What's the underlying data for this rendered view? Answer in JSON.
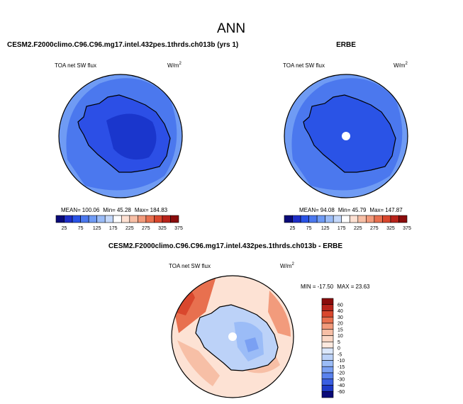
{
  "page_title": "ANN",
  "colors": {
    "ocean_light": "#6f9bf4",
    "ocean_mid": "#4b78ee",
    "land": "#2c4fe6",
    "interior": "#1a36cc",
    "coast": "#000000",
    "pole_dot": "#ffffff"
  },
  "chart_data": [
    {
      "type": "heatmap",
      "title": "CESM2.F2000climo.C96.C96.mg17.intel.432pes.1thrds.ch013b (yrs 1)",
      "variable": "TOA net SW flux",
      "units": "W/m",
      "units_superscript": "2",
      "projection": "south-polar-stereographic",
      "stats": {
        "mean_label": "MEAN=",
        "mean": "100.06",
        "min_label": "Min=",
        "min": "45.28",
        "max_label": "Max=",
        "max": "184.83"
      },
      "colorbar": {
        "orientation": "horizontal",
        "ticks": [
          "25",
          "75",
          "125",
          "175",
          "225",
          "275",
          "325",
          "375"
        ],
        "colors": [
          "#0a0a78",
          "#1f2fc8",
          "#2a53e6",
          "#4b78ee",
          "#6f9bf4",
          "#9bbcf7",
          "#c4d8fa",
          "#ffffff",
          "#fde0d2",
          "#f7bfa6",
          "#f29b7c",
          "#e8704f",
          "#d9472d",
          "#b8231b",
          "#8a0c0c"
        ]
      }
    },
    {
      "type": "heatmap",
      "title": "ERBE",
      "variable": "TOA net SW flux",
      "units": "W/m",
      "units_superscript": "2",
      "projection": "south-polar-stereographic",
      "stats": {
        "mean_label": "MEAN=",
        "mean": "94.08",
        "min_label": "Min=",
        "min": "45.79",
        "max_label": "Max=",
        "max": "147.87"
      },
      "colorbar": {
        "orientation": "horizontal",
        "ticks": [
          "25",
          "75",
          "125",
          "175",
          "225",
          "275",
          "325",
          "375"
        ],
        "colors": [
          "#0a0a78",
          "#1f2fc8",
          "#2a53e6",
          "#4b78ee",
          "#6f9bf4",
          "#9bbcf7",
          "#c4d8fa",
          "#ffffff",
          "#fde0d2",
          "#f7bfa6",
          "#f29b7c",
          "#e8704f",
          "#d9472d",
          "#b8231b",
          "#8a0c0c"
        ]
      }
    },
    {
      "type": "heatmap",
      "title": "CESM2.F2000climo.C96.C96.mg17.intel.432pes.1thrds.ch013b - ERBE",
      "variable": "TOA net SW flux",
      "units": "W/m",
      "units_superscript": "2",
      "projection": "south-polar-stereographic",
      "stats": {
        "min_label": "MIN =",
        "min": "-17.50",
        "max_label": "MAX =",
        "max": "23.63"
      },
      "colorbar": {
        "orientation": "vertical",
        "ticks": [
          "60",
          "40",
          "30",
          "20",
          "15",
          "10",
          "5",
          "0",
          "-5",
          "-10",
          "-15",
          "-20",
          "-30",
          "-40",
          "-60"
        ],
        "colors": [
          "#8a0c0c",
          "#b8231b",
          "#d9472d",
          "#e8704f",
          "#f29b7c",
          "#f7bfa6",
          "#fbd8c6",
          "#fde9df",
          "#dbe7fb",
          "#bcd2f8",
          "#9bbcf7",
          "#7aa0f3",
          "#5a82ee",
          "#3a5fe2",
          "#1f3bc8",
          "#0a0a78"
        ]
      }
    }
  ]
}
